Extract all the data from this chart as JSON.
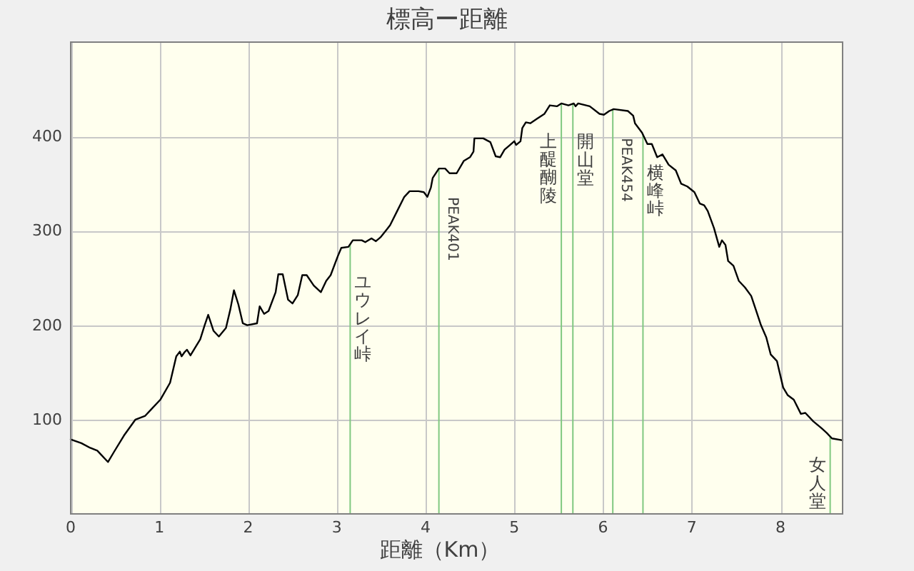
{
  "chart_data": {
    "type": "line",
    "title": "標高ー距離",
    "xlabel": "距離（Km）",
    "x": [
      0,
      0.12,
      0.22,
      0.3,
      0.42,
      0.49,
      0.6,
      0.73,
      0.84,
      0.92,
      1.01,
      1.12,
      1.19,
      1.23,
      1.25,
      1.28,
      1.31,
      1.35,
      1.46,
      1.51,
      1.55,
      1.61,
      1.67,
      1.75,
      1.8,
      1.84,
      1.89,
      1.94,
      1.99,
      2.1,
      2.13,
      2.18,
      2.23,
      2.31,
      2.34,
      2.39,
      2.45,
      2.5,
      2.56,
      2.61,
      2.66,
      2.74,
      2.82,
      2.88,
      2.93,
      3.01,
      3.05,
      3.13,
      3.18,
      3.28,
      3.32,
      3.39,
      3.44,
      3.49,
      3.55,
      3.6,
      3.68,
      3.76,
      3.82,
      3.92,
      3.98,
      4.02,
      4.06,
      4.08,
      4.15,
      4.22,
      4.27,
      4.35,
      4.43,
      4.5,
      4.54,
      4.55,
      4.65,
      4.73,
      4.79,
      4.84,
      4.89,
      4.94,
      5.0,
      5.02,
      5.07,
      5.09,
      5.13,
      5.18,
      5.26,
      5.34,
      5.4,
      5.48,
      5.53,
      5.61,
      5.67,
      5.69,
      5.72,
      5.85,
      5.96,
      6.01,
      6.07,
      6.12,
      6.28,
      6.34,
      6.36,
      6.44,
      6.5,
      6.55,
      6.61,
      6.67,
      6.74,
      6.82,
      6.88,
      6.95,
      7.03,
      7.09,
      7.14,
      7.18,
      7.25,
      7.31,
      7.34,
      7.38,
      7.41,
      7.47,
      7.53,
      7.6,
      7.67,
      7.72,
      7.78,
      7.84,
      7.89,
      7.96,
      8.03,
      8.08,
      8.15,
      8.23,
      8.28,
      8.37,
      8.46,
      8.52,
      8.58,
      8.7
    ],
    "series": [
      {
        "color": "#000000",
        "values": [
          79,
          75,
          70,
          67,
          55,
          66,
          83,
          100,
          104,
          112,
          121,
          139,
          167,
          172,
          167,
          171,
          174,
          168,
          185,
          200,
          211,
          194,
          188,
          197,
          217,
          237,
          222,
          202,
          200,
          202,
          220,
          212,
          215,
          235,
          254,
          254,
          227,
          223,
          232,
          253,
          253,
          242,
          235,
          247,
          253,
          273,
          282,
          283,
          290,
          290,
          288,
          292,
          289,
          293,
          300,
          306,
          321,
          336,
          342,
          342,
          341,
          336,
          346,
          356,
          366,
          366,
          361,
          361,
          374,
          378,
          384,
          398,
          398,
          394,
          379,
          378,
          386,
          390,
          395,
          391,
          395,
          409,
          415,
          414,
          419,
          424,
          433,
          432,
          435,
          433,
          435,
          432,
          435,
          432,
          424,
          423,
          427,
          429,
          427,
          422,
          414,
          404,
          392,
          392,
          378,
          381,
          370,
          364,
          350,
          347,
          341,
          329,
          327,
          321,
          303,
          283,
          290,
          285,
          268,
          263,
          247,
          240,
          231,
          217,
          200,
          187,
          169,
          162,
          134,
          126,
          121,
          106,
          107,
          98,
          91,
          86,
          80,
          78
        ]
      }
    ],
    "xlim": [
      0,
      8.7
    ],
    "ylim": [
      0,
      500
    ],
    "xticks": [
      0,
      1,
      2,
      3,
      4,
      5,
      6,
      7,
      8
    ],
    "yticks": [
      100,
      200,
      300,
      400
    ],
    "grid": true,
    "ref_lines": [
      {
        "axis": "x",
        "value": 3.15,
        "label": "ユウレイ峠",
        "color": "#80c880"
      },
      {
        "axis": "x",
        "value": 4.15,
        "label": "PEAK401",
        "color": "#80c880"
      },
      {
        "axis": "x",
        "value": 5.53,
        "label": "上醍醐陵",
        "color": "#80c880"
      },
      {
        "axis": "x",
        "value": 5.66,
        "label": "開山堂",
        "color": "#80c880"
      },
      {
        "axis": "x",
        "value": 6.11,
        "label": "PEAK454",
        "color": "#80c880"
      },
      {
        "axis": "x",
        "value": 6.45,
        "label": "横峰峠",
        "color": "#80c880"
      },
      {
        "axis": "x",
        "value": 8.56,
        "label": "女人堂",
        "color": "#80c880"
      }
    ]
  }
}
